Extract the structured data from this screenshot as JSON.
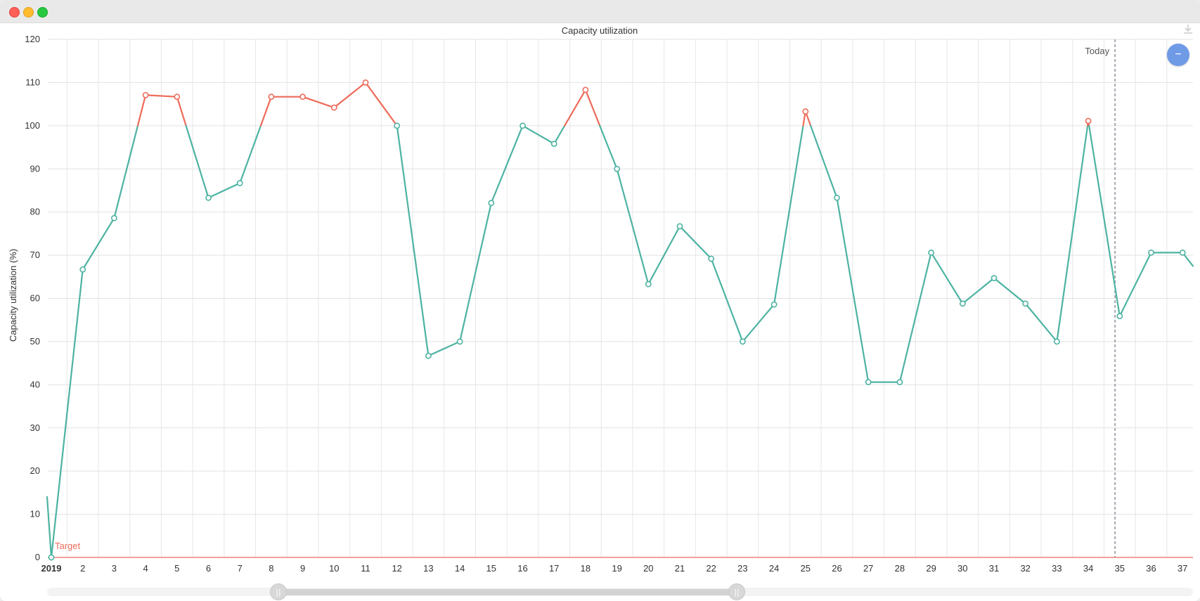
{
  "window": {
    "controls": [
      "close",
      "minimize",
      "zoom"
    ]
  },
  "toolbar": {
    "zoom_out_icon": "minus-icon",
    "download_icon": "download-icon",
    "zoom_out_glyph": "−"
  },
  "slider": {
    "handle_glyph": "||",
    "range_start": 0.2,
    "range_end": 0.6
  },
  "chart_data": {
    "type": "line",
    "title": "Capacity utilization",
    "ylabel": "Capacity utilization (%)",
    "xlabel": "",
    "ylim": [
      0,
      120
    ],
    "yticks": [
      0,
      10,
      20,
      30,
      40,
      50,
      60,
      70,
      80,
      90,
      100,
      110,
      120
    ],
    "grid": true,
    "x_start_label": "2019",
    "categories": [
      "2019",
      "2",
      "3",
      "4",
      "5",
      "6",
      "7",
      "8",
      "9",
      "10",
      "11",
      "12",
      "13",
      "14",
      "15",
      "16",
      "17",
      "18",
      "19",
      "20",
      "21",
      "22",
      "23",
      "24",
      "25",
      "26",
      "27",
      "28",
      "29",
      "30",
      "31",
      "32",
      "33",
      "34",
      "35",
      "36",
      "37"
    ],
    "series": [
      {
        "values": [
          0,
          66.7,
          78.6,
          107.1,
          106.7,
          83.3,
          86.7,
          106.7,
          106.7,
          104.2,
          110,
          100,
          46.7,
          50,
          82.1,
          100,
          95.8,
          108.3,
          90,
          63.3,
          76.7,
          69.2,
          50,
          58.6,
          103.3,
          83.3,
          40.6,
          40.6,
          70.6,
          58.8,
          64.7,
          58.8,
          50,
          101.1,
          55.9,
          70.6,
          70.6
        ],
        "leading_value": 14,
        "trailing_value": 67.5,
        "color_below_threshold": "#4db3a2",
        "color_above_threshold": "#ee6b5a",
        "threshold": 100
      }
    ],
    "target": {
      "label": "Target",
      "value": 0,
      "color": "#ee6b5a"
    },
    "today": {
      "label": "Today",
      "position_after_category": "34",
      "offset": 0.85
    }
  }
}
